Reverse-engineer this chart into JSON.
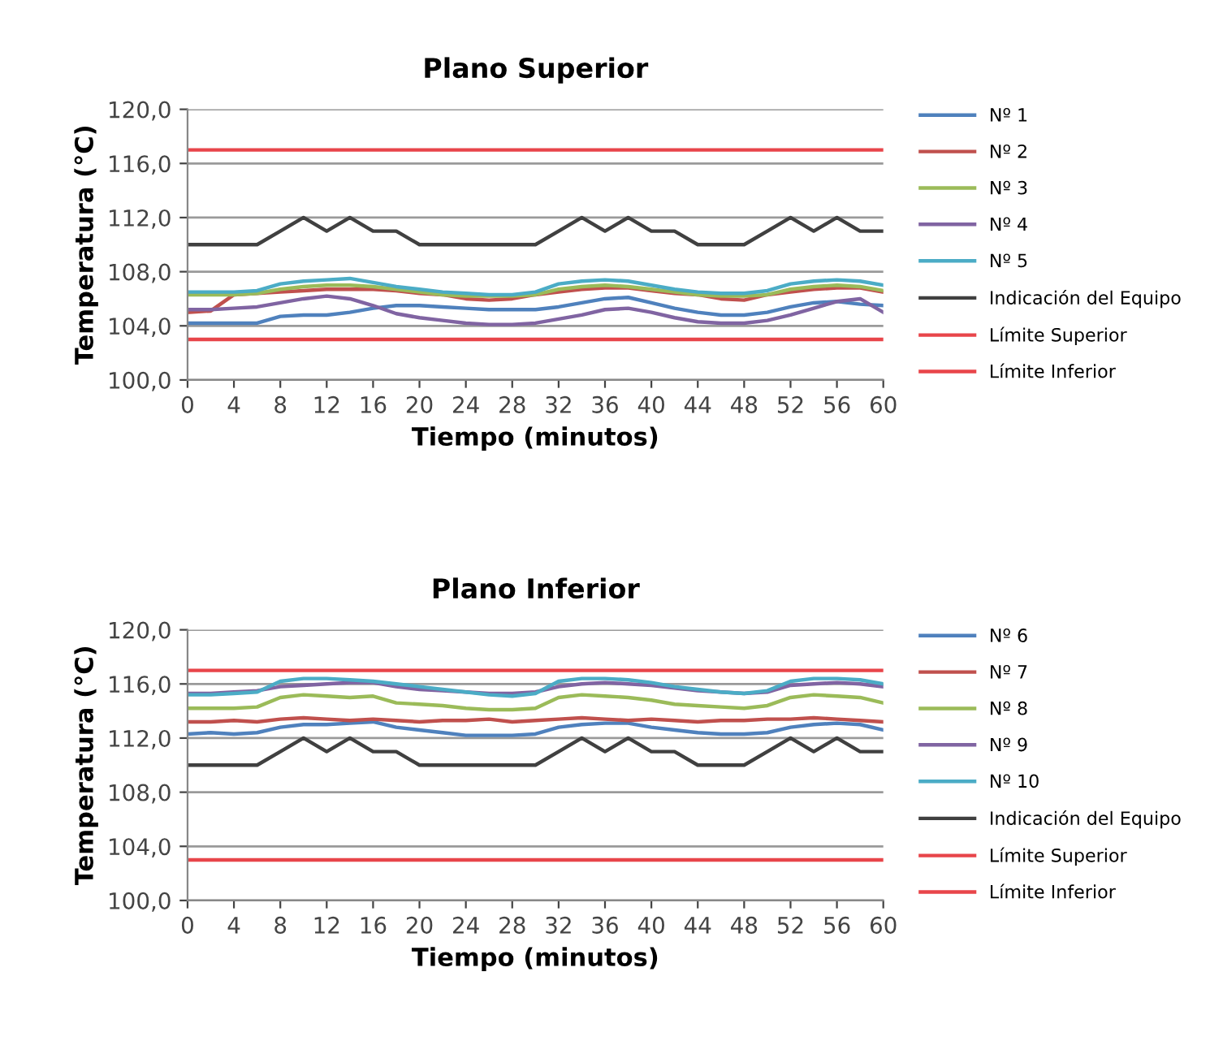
{
  "chart_data": [
    {
      "type": "line",
      "title": "Plano Superior",
      "xlabel": "Tiempo (minutos)",
      "ylabel": "Temperatura (°C)",
      "x": [
        0,
        2,
        4,
        6,
        8,
        10,
        12,
        14,
        16,
        18,
        20,
        22,
        24,
        26,
        28,
        30,
        32,
        34,
        36,
        38,
        40,
        42,
        44,
        46,
        48,
        50,
        52,
        54,
        56,
        58,
        60
      ],
      "xlim": [
        0,
        60
      ],
      "xticks": [
        0,
        4,
        8,
        12,
        16,
        20,
        24,
        28,
        32,
        36,
        40,
        44,
        48,
        52,
        56,
        60
      ],
      "ylim": [
        100,
        120
      ],
      "yticks": [
        {
          "value": 100,
          "label": "100,0"
        },
        {
          "value": 104,
          "label": "104,0"
        },
        {
          "value": 108,
          "label": "108,0"
        },
        {
          "value": 112,
          "label": "112,0"
        },
        {
          "value": 116,
          "label": "116,0"
        },
        {
          "value": 120,
          "label": "120,0"
        }
      ],
      "grid": "y",
      "legend": "right",
      "marker": "none",
      "line_style": "solid",
      "series": [
        {
          "name": "Nº 1",
          "color": "#4f81bd",
          "values": [
            104.2,
            104.2,
            104.2,
            104.2,
            104.7,
            104.8,
            104.8,
            105.0,
            105.3,
            105.5,
            105.5,
            105.4,
            105.3,
            105.2,
            105.2,
            105.2,
            105.4,
            105.7,
            106.0,
            106.1,
            105.7,
            105.3,
            105.0,
            104.8,
            104.8,
            105.0,
            105.4,
            105.7,
            105.8,
            105.6,
            105.5
          ]
        },
        {
          "name": "Nº 2",
          "color": "#c0504d",
          "values": [
            105.0,
            105.1,
            106.3,
            106.4,
            106.5,
            106.6,
            106.7,
            106.7,
            106.7,
            106.6,
            106.4,
            106.3,
            106.0,
            105.9,
            106.0,
            106.3,
            106.5,
            106.7,
            106.8,
            106.8,
            106.6,
            106.4,
            106.3,
            106.0,
            105.9,
            106.3,
            106.5,
            106.7,
            106.8,
            106.8,
            106.5
          ]
        },
        {
          "name": "Nº 3",
          "color": "#9bbb59",
          "values": [
            106.3,
            106.3,
            106.3,
            106.4,
            106.7,
            106.9,
            107.0,
            107.0,
            106.9,
            106.7,
            106.5,
            106.3,
            106.2,
            106.2,
            106.2,
            106.3,
            106.7,
            106.9,
            107.0,
            106.9,
            106.7,
            106.5,
            106.3,
            106.2,
            106.2,
            106.3,
            106.7,
            106.9,
            107.0,
            106.9,
            106.6
          ]
        },
        {
          "name": "Nº 4",
          "color": "#8064a2",
          "values": [
            105.2,
            105.2,
            105.3,
            105.4,
            105.7,
            106.0,
            106.2,
            106.0,
            105.5,
            104.9,
            104.6,
            104.4,
            104.2,
            104.1,
            104.1,
            104.2,
            104.5,
            104.8,
            105.2,
            105.3,
            105.0,
            104.6,
            104.3,
            104.2,
            104.2,
            104.4,
            104.8,
            105.3,
            105.8,
            106.0,
            105.0
          ]
        },
        {
          "name": "Nº 5",
          "color": "#4bacc6",
          "values": [
            106.5,
            106.5,
            106.5,
            106.6,
            107.1,
            107.3,
            107.4,
            107.5,
            107.2,
            106.9,
            106.7,
            106.5,
            106.4,
            106.3,
            106.3,
            106.5,
            107.1,
            107.3,
            107.4,
            107.3,
            107.0,
            106.7,
            106.5,
            106.4,
            106.4,
            106.6,
            107.1,
            107.3,
            107.4,
            107.3,
            107.0
          ]
        },
        {
          "name": "Indicación del Equipo",
          "color": "#404040",
          "values": [
            110,
            110,
            110,
            110,
            111,
            112,
            111,
            112,
            111,
            111,
            110,
            110,
            110,
            110,
            110,
            110,
            111,
            112,
            111,
            112,
            111,
            111,
            110,
            110,
            110,
            111,
            112,
            111,
            112,
            111,
            111
          ]
        },
        {
          "name": "Límite Superior",
          "color": "#e8454a",
          "values": [
            117,
            117,
            117,
            117,
            117,
            117,
            117,
            117,
            117,
            117,
            117,
            117,
            117,
            117,
            117,
            117,
            117,
            117,
            117,
            117,
            117,
            117,
            117,
            117,
            117,
            117,
            117,
            117,
            117,
            117,
            117
          ]
        },
        {
          "name": "Límite Inferior",
          "color": "#e8454a",
          "values": [
            103,
            103,
            103,
            103,
            103,
            103,
            103,
            103,
            103,
            103,
            103,
            103,
            103,
            103,
            103,
            103,
            103,
            103,
            103,
            103,
            103,
            103,
            103,
            103,
            103,
            103,
            103,
            103,
            103,
            103,
            103
          ]
        }
      ]
    },
    {
      "type": "line",
      "title": "Plano Inferior",
      "xlabel": "Tiempo (minutos)",
      "ylabel": "Temperatura (°C)",
      "x": [
        0,
        2,
        4,
        6,
        8,
        10,
        12,
        14,
        16,
        18,
        20,
        22,
        24,
        26,
        28,
        30,
        32,
        34,
        36,
        38,
        40,
        42,
        44,
        46,
        48,
        50,
        52,
        54,
        56,
        58,
        60
      ],
      "xlim": [
        0,
        60
      ],
      "xticks": [
        0,
        4,
        8,
        12,
        16,
        20,
        24,
        28,
        32,
        36,
        40,
        44,
        48,
        52,
        56,
        60
      ],
      "ylim": [
        100,
        120
      ],
      "yticks": [
        {
          "value": 100,
          "label": "100,0"
        },
        {
          "value": 104,
          "label": "104,0"
        },
        {
          "value": 108,
          "label": "108,0"
        },
        {
          "value": 112,
          "label": "112,0"
        },
        {
          "value": 116,
          "label": "116,0"
        },
        {
          "value": 120,
          "label": "120,0"
        }
      ],
      "grid": "y",
      "legend": "right",
      "marker": "none",
      "line_style": "solid",
      "series": [
        {
          "name": "Nº 6",
          "color": "#4f81bd",
          "values": [
            112.3,
            112.4,
            112.3,
            112.4,
            112.8,
            113.0,
            113.0,
            113.1,
            113.2,
            112.8,
            112.6,
            112.4,
            112.2,
            112.2,
            112.2,
            112.3,
            112.8,
            113.0,
            113.1,
            113.1,
            112.8,
            112.6,
            112.4,
            112.3,
            112.3,
            112.4,
            112.8,
            113.0,
            113.1,
            113.0,
            112.6
          ]
        },
        {
          "name": "Nº 7",
          "color": "#c0504d",
          "values": [
            113.2,
            113.2,
            113.3,
            113.2,
            113.4,
            113.5,
            113.4,
            113.3,
            113.4,
            113.3,
            113.2,
            113.3,
            113.3,
            113.4,
            113.2,
            113.3,
            113.4,
            113.5,
            113.4,
            113.3,
            113.4,
            113.3,
            113.2,
            113.3,
            113.3,
            113.4,
            113.4,
            113.5,
            113.4,
            113.3,
            113.2
          ]
        },
        {
          "name": "Nº 8",
          "color": "#9bbb59",
          "values": [
            114.2,
            114.2,
            114.2,
            114.3,
            115.0,
            115.2,
            115.1,
            115.0,
            115.1,
            114.6,
            114.5,
            114.4,
            114.2,
            114.1,
            114.1,
            114.2,
            115.0,
            115.2,
            115.1,
            115.0,
            114.8,
            114.5,
            114.4,
            114.3,
            114.2,
            114.4,
            115.0,
            115.2,
            115.1,
            115.0,
            114.6
          ]
        },
        {
          "name": "Nº 9",
          "color": "#8064a2",
          "values": [
            115.3,
            115.3,
            115.4,
            115.5,
            115.8,
            115.9,
            116.0,
            116.1,
            116.1,
            115.8,
            115.6,
            115.5,
            115.4,
            115.3,
            115.3,
            115.4,
            115.8,
            116.0,
            116.1,
            116.0,
            115.9,
            115.7,
            115.5,
            115.4,
            115.3,
            115.4,
            115.9,
            116.0,
            116.1,
            116.0,
            115.8
          ]
        },
        {
          "name": "Nº 10",
          "color": "#4bacc6",
          "values": [
            115.2,
            115.2,
            115.3,
            115.4,
            116.2,
            116.4,
            116.4,
            116.3,
            116.2,
            116.0,
            115.8,
            115.6,
            115.4,
            115.2,
            115.1,
            115.3,
            116.2,
            116.4,
            116.4,
            116.3,
            116.1,
            115.8,
            115.6,
            115.4,
            115.3,
            115.5,
            116.2,
            116.4,
            116.4,
            116.3,
            116.0
          ]
        },
        {
          "name": "Indicación del Equipo",
          "color": "#404040",
          "values": [
            110,
            110,
            110,
            110,
            111,
            112,
            111,
            112,
            111,
            111,
            110,
            110,
            110,
            110,
            110,
            110,
            111,
            112,
            111,
            112,
            111,
            111,
            110,
            110,
            110,
            111,
            112,
            111,
            112,
            111,
            111
          ]
        },
        {
          "name": "Límite Superior",
          "color": "#e8454a",
          "values": [
            117,
            117,
            117,
            117,
            117,
            117,
            117,
            117,
            117,
            117,
            117,
            117,
            117,
            117,
            117,
            117,
            117,
            117,
            117,
            117,
            117,
            117,
            117,
            117,
            117,
            117,
            117,
            117,
            117,
            117,
            117
          ]
        },
        {
          "name": "Límite Inferior",
          "color": "#e8454a",
          "values": [
            103,
            103,
            103,
            103,
            103,
            103,
            103,
            103,
            103,
            103,
            103,
            103,
            103,
            103,
            103,
            103,
            103,
            103,
            103,
            103,
            103,
            103,
            103,
            103,
            103,
            103,
            103,
            103,
            103,
            103,
            103
          ]
        }
      ]
    }
  ]
}
